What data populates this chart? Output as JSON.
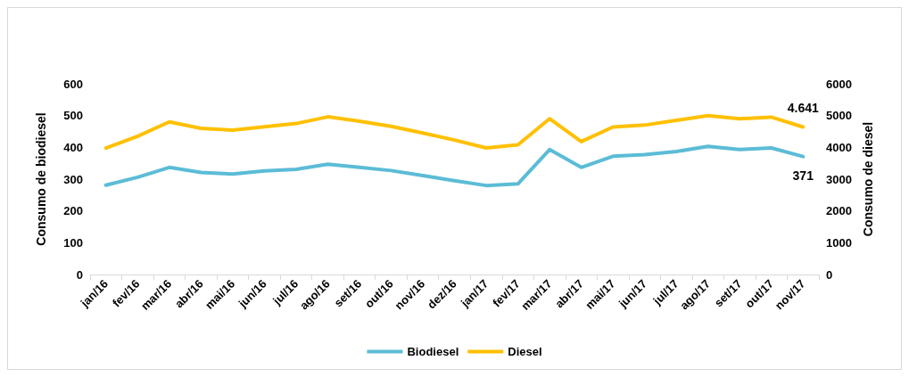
{
  "chart_data": {
    "type": "line",
    "ylabel": "Consumo de biodiesel",
    "y2label": "Consumo de diesel",
    "categories": [
      "jan/16",
      "fev/16",
      "mar/16",
      "abr/16",
      "mai/16",
      "jun/16",
      "jul/16",
      "ago/16",
      "set/16",
      "out/16",
      "nov/16",
      "dez/16",
      "jan/17",
      "fev/17",
      "mar/17",
      "abr/17",
      "mai/17",
      "jun/17",
      "jul/17",
      "ago/17",
      "set/17",
      "out/17",
      "nov/17"
    ],
    "series": [
      {
        "name": "Biodiesel",
        "color": "#5bbcd6",
        "values": [
          281,
          306,
          337,
          321,
          316,
          326,
          331,
          347,
          337,
          327,
          311,
          295,
          280,
          285,
          393,
          337,
          372,
          377,
          387,
          403,
          393,
          398,
          371
        ],
        "value_labels": [
          null,
          null,
          null,
          null,
          null,
          null,
          null,
          null,
          null,
          null,
          null,
          null,
          null,
          null,
          null,
          null,
          null,
          null,
          null,
          null,
          null,
          null,
          "371"
        ]
      },
      {
        "name": "Diesel",
        "color": "#ffc000",
        "axis": "y2",
        "values": [
          3980,
          4350,
          4800,
          4600,
          4540,
          4650,
          4750,
          4960,
          4820,
          4660,
          4450,
          4230,
          3980,
          4080,
          4900,
          4180,
          4640,
          4700,
          4850,
          5000,
          4900,
          4950,
          4641
        ],
        "value_labels": [
          null,
          null,
          null,
          null,
          null,
          null,
          null,
          null,
          null,
          null,
          null,
          null,
          null,
          null,
          null,
          null,
          null,
          null,
          null,
          null,
          null,
          null,
          "4.641"
        ]
      }
    ],
    "ylim": [
      0,
      600
    ],
    "yticks": [
      0,
      100,
      200,
      300,
      400,
      500,
      600
    ],
    "y2lim": [
      0,
      6000
    ],
    "y2ticks": [
      0,
      1000,
      2000,
      3000,
      4000,
      5000,
      6000
    ],
    "grid": false,
    "legend": "bottom",
    "marker": "none",
    "line_style": "solid"
  }
}
